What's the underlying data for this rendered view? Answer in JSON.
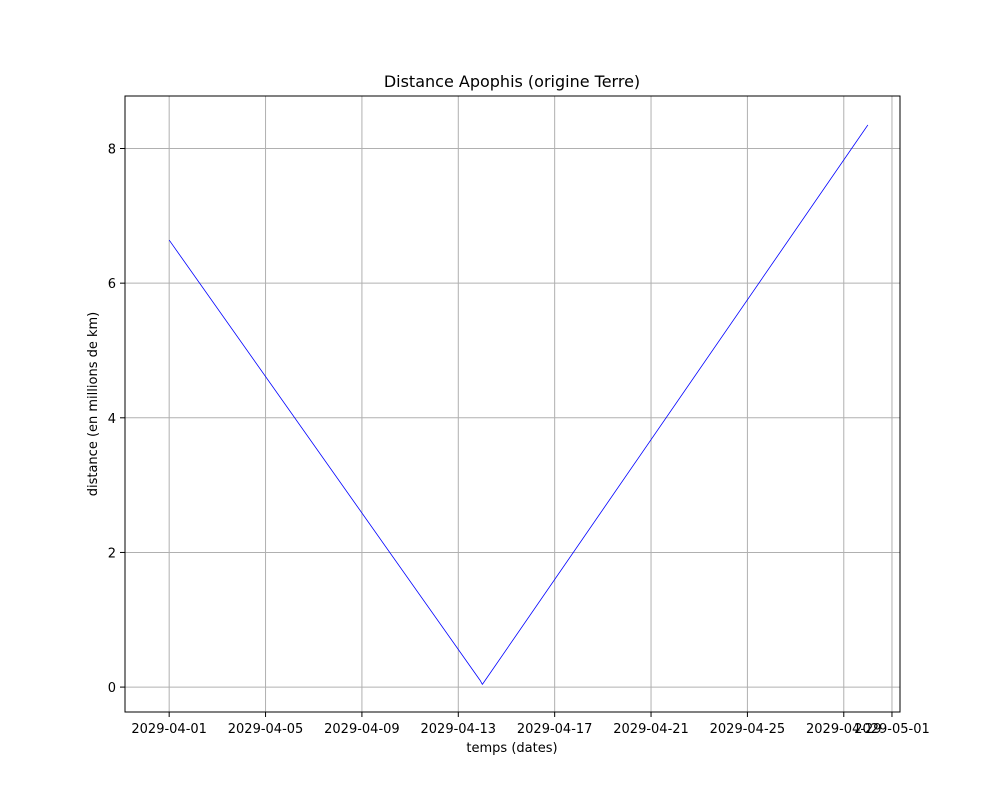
{
  "chart_data": {
    "type": "line",
    "title": "Distance Apophis (origine Terre)",
    "xlabel": "temps (dates)",
    "ylabel": "distance (en millions de km)",
    "x_type": "date",
    "xlim": [
      "2029-03-30T04:00",
      "2029-05-01T08:00"
    ],
    "ylim": [
      -0.37,
      8.78
    ],
    "x_ticks": [
      "2029-04-01",
      "2029-04-05",
      "2029-04-09",
      "2029-04-13",
      "2029-04-17",
      "2029-04-21",
      "2029-04-25",
      "2029-04-29",
      "2029-05-01"
    ],
    "y_ticks": [
      0,
      2,
      4,
      6,
      8
    ],
    "grid": true,
    "series": [
      {
        "color": "#0000ff",
        "x": [
          "2029-04-01T00:00",
          "2029-04-13T21:45",
          "2029-04-14T00:00",
          "2029-04-30T00:00"
        ],
        "y": [
          6.64,
          0.1,
          0.04,
          8.35
        ]
      }
    ]
  }
}
